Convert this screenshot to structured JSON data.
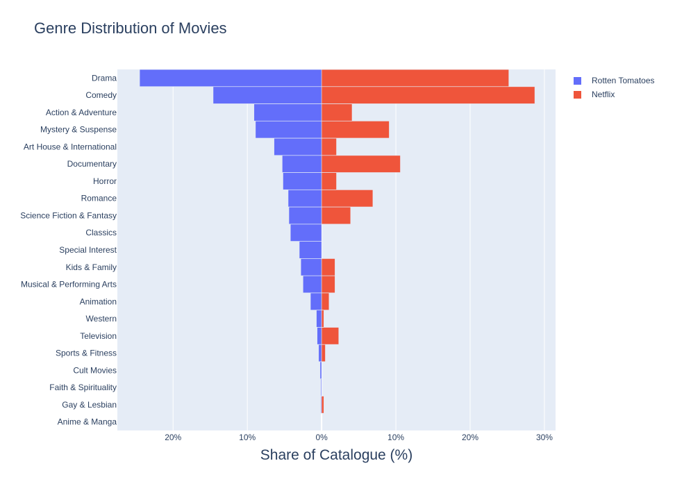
{
  "chart_data": {
    "type": "bar",
    "orientation": "horizontal",
    "barmode": "relative",
    "title": "Genre Distribution of Movies",
    "xlabel": "Share of Catalogue (%)",
    "ylabel": "",
    "xlim": [
      -27.5,
      31.5
    ],
    "xticks": [
      -20,
      -10,
      0,
      10,
      20,
      30
    ],
    "xtick_labels": [
      "20%",
      "10%",
      "0%",
      "10%",
      "20%",
      "30%"
    ],
    "grid": true,
    "legend_position": "top-right",
    "categories": [
      "Drama",
      "Comedy",
      "Action & Adventure",
      "Mystery & Suspense",
      "Art House & International",
      "Documentary",
      "Horror",
      "Romance",
      "Science Fiction & Fantasy",
      "Classics",
      "Special Interest",
      "Kids & Family",
      "Musical & Performing Arts",
      "Animation",
      "Western",
      "Television",
      "Sports & Fitness",
      "Cult Movies",
      "Faith & Spirituality",
      "Gay & Lesbian",
      "Anime & Manga"
    ],
    "series": [
      {
        "name": "Rotten Tomatoes",
        "color": "#636efa",
        "values": [
          -24.5,
          -14.6,
          -9.1,
          -8.9,
          -6.4,
          -5.3,
          -5.2,
          -4.5,
          -4.4,
          -4.2,
          -3.0,
          -2.8,
          -2.5,
          -1.5,
          -0.7,
          -0.6,
          -0.4,
          -0.2,
          -0.1,
          -0.1,
          0.0
        ]
      },
      {
        "name": "Netflix",
        "color": "#ef553b",
        "values": [
          25.2,
          28.7,
          4.1,
          9.1,
          2.0,
          10.6,
          2.0,
          6.9,
          3.9,
          0.0,
          0.0,
          1.8,
          1.8,
          1.0,
          0.3,
          2.3,
          0.5,
          0.0,
          0.0,
          0.3,
          0.0
        ]
      }
    ]
  }
}
